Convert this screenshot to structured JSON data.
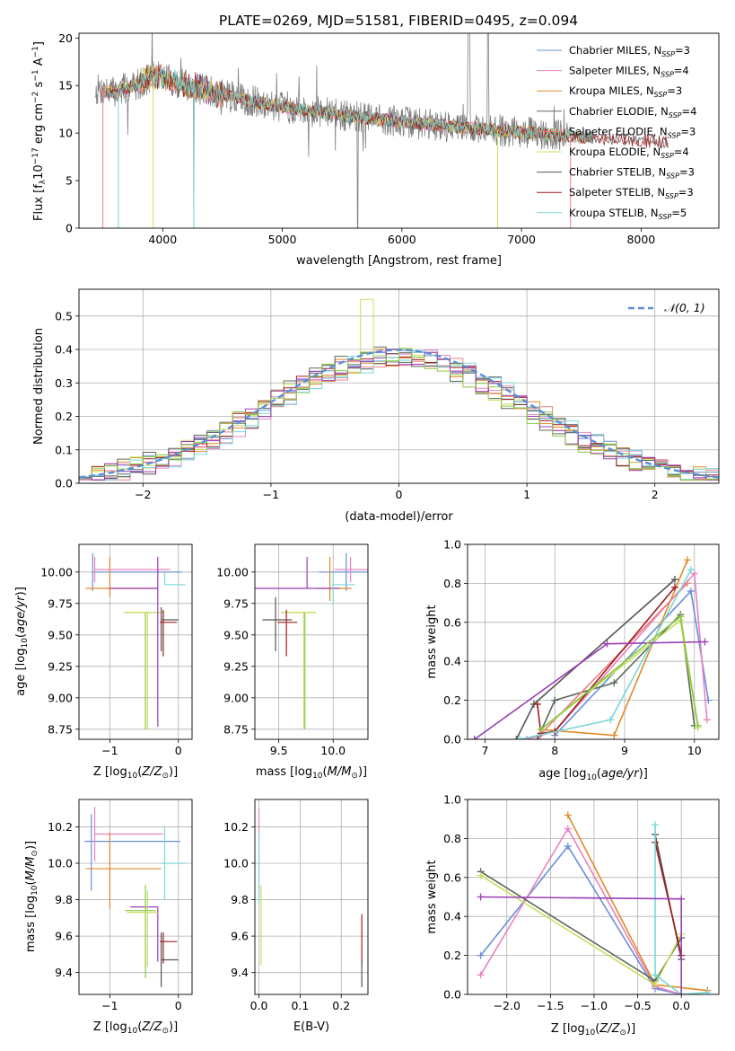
{
  "title": "PLATE=0269, MJD=51581, FIBERID=0495, z=0.094",
  "colors": {
    "chabrier_miles": "#6a8fd8",
    "salpeter_miles": "#e883c0",
    "kroupa_miles": "#e08a2a",
    "chabrier_elodie": "#5a6a5a",
    "salpeter_elodie": "#f08080",
    "kroupa_elodie": "#c8e060",
    "chabrier_stelib": "#555555",
    "salpeter_stelib": "#a01c1c",
    "kroupa_stelib": "#7ad8d8",
    "purple": "#9a3fb5",
    "green": "#8ac940",
    "observed": "#808080",
    "normal": "#5b8fd8"
  },
  "chart_data": [
    {
      "id": "spectrum",
      "type": "line",
      "xlabel": "wavelength [Angstrom, rest frame]",
      "ylabel": "Flux [f_λ 10^-17 erg cm^-2 s^-1 A^-1]",
      "xlim": [
        3300,
        8650
      ],
      "ylim": [
        0,
        20.5
      ],
      "xticks": [
        4000,
        5000,
        6000,
        7000,
        8000
      ],
      "yticks": [
        0,
        5,
        10,
        15,
        20
      ],
      "grid": false,
      "legend_position": "top-right",
      "legend": [
        {
          "name": "Chabrier MILES",
          "nssp": "3",
          "color": "#6a8fd8"
        },
        {
          "name": "Salpeter MILES",
          "nssp": "4",
          "color": "#e883c0"
        },
        {
          "name": "Kroupa MILES",
          "nssp": "3",
          "color": "#e08a2a"
        },
        {
          "name": "Chabrier ELODIE",
          "nssp": "4",
          "color": "#5a6a5a"
        },
        {
          "name": "Salpeter ELODIE",
          "nssp": "3",
          "color": "#f08080"
        },
        {
          "name": "Kroupa ELODIE",
          "nssp": "4",
          "color": "#c8e060"
        },
        {
          "name": "Chabrier STELIB",
          "nssp": "3",
          "color": "#555555"
        },
        {
          "name": "Salpeter STELIB",
          "nssp": "3",
          "color": "#a01c1c"
        },
        {
          "name": "Kroupa STELIB",
          "nssp": "5",
          "color": "#7ad8d8"
        }
      ],
      "continuum": [
        [
          3430,
          14.6
        ],
        [
          3600,
          14.3
        ],
        [
          3800,
          15.2
        ],
        [
          3950,
          16.2
        ],
        [
          4100,
          15.4
        ],
        [
          4400,
          14.3
        ],
        [
          4800,
          13.2
        ],
        [
          5200,
          12.4
        ],
        [
          5600,
          11.7
        ],
        [
          6000,
          11.2
        ],
        [
          6500,
          10.6
        ],
        [
          7000,
          10.1
        ],
        [
          7500,
          9.6
        ],
        [
          8000,
          9.2
        ],
        [
          8230,
          9.0
        ]
      ]
    },
    {
      "id": "residuals",
      "type": "line",
      "xlabel": "(data-model)/error",
      "ylabel": "Normed distribution",
      "xlim": [
        -2.5,
        2.5
      ],
      "ylim": [
        0,
        0.58
      ],
      "xticks": [
        -2,
        -1,
        0,
        1,
        2
      ],
      "yticks": [
        0.0,
        0.1,
        0.2,
        0.3,
        0.4,
        0.5
      ],
      "grid": true,
      "legend_position": "top-right",
      "legend": [
        {
          "name": "𝒩(0, 1)",
          "style": "dashed"
        }
      ],
      "bin_width": 0.1
    },
    {
      "id": "age_vs_Z",
      "type": "scatter",
      "xlabel": "Z [log10(Z/Z⊙)]",
      "ylabel": "age  [log10(age/yr)]",
      "xlim": [
        -1.45,
        0.2
      ],
      "ylim": [
        8.67,
        10.22
      ],
      "xticks": [
        -1,
        0
      ],
      "yticks": [
        8.75,
        9.0,
        9.25,
        9.5,
        9.75,
        10.0
      ],
      "grid": true,
      "points": [
        {
          "x": -1.25,
          "xerr": [
            0.0,
            1.3
          ],
          "y": 10.0,
          "yerr": [
            0.15,
            0.15
          ],
          "color": "#6a8fd8"
        },
        {
          "x": -1.22,
          "xerr": [
            0.0,
            1.1
          ],
          "y": 10.02,
          "yerr": [
            0.1,
            0.1
          ],
          "color": "#e883c0"
        },
        {
          "x": -1.0,
          "xerr": [
            0.35,
            0.7
          ],
          "y": 9.87,
          "yerr": [
            0.07,
            0.25
          ],
          "color": "#e08a2a"
        },
        {
          "x": -0.48,
          "xerr": [
            0.3,
            0.2
          ],
          "y": 9.68,
          "yerr": [
            0.93,
            0.0
          ],
          "color": "#8ac940"
        },
        {
          "x": -0.45,
          "xerr": [
            0.35,
            0.25
          ],
          "y": 9.68,
          "yerr": [
            0.93,
            0.0
          ],
          "color": "#c8e060"
        },
        {
          "x": -0.3,
          "xerr": [
            0.7,
            0.0
          ],
          "y": 9.87,
          "yerr": [
            1.1,
            0.25
          ],
          "color": "#9a3fb5"
        },
        {
          "x": -0.2,
          "xerr": [
            0.0,
            0.3
          ],
          "y": 9.9,
          "yerr": [
            0.0,
            0.1
          ],
          "color": "#7ad8d8"
        },
        {
          "x": -0.25,
          "xerr": [
            0.0,
            0.25
          ],
          "y": 9.62,
          "yerr": [
            0.25,
            0.1
          ],
          "color": "#555555"
        },
        {
          "x": -0.22,
          "xerr": [
            0.05,
            0.2
          ],
          "y": 9.6,
          "yerr": [
            0.27,
            0.1
          ],
          "color": "#a01c1c"
        }
      ]
    },
    {
      "id": "age_vs_mass",
      "type": "scatter",
      "xlabel": "mass [log10(M/M⊙)]",
      "ylabel": "",
      "xlim": [
        9.28,
        10.32
      ],
      "ylim": [
        8.67,
        10.22
      ],
      "xticks": [
        9.5,
        10.0
      ],
      "yticks": [
        8.75,
        9.0,
        9.25,
        9.5,
        9.75,
        10.0
      ],
      "grid": true,
      "points": [
        {
          "x": 10.12,
          "xerr": [
            0.25,
            0.2
          ],
          "y": 10.0,
          "yerr": [
            0.15,
            0.15
          ],
          "color": "#6a8fd8"
        },
        {
          "x": 10.16,
          "xerr": [
            0.15,
            0.2
          ],
          "y": 10.02,
          "yerr": [
            0.1,
            0.1
          ],
          "color": "#e883c0"
        },
        {
          "x": 9.97,
          "xerr": [
            0.12,
            0.2
          ],
          "y": 9.87,
          "yerr": [
            0.1,
            0.25
          ],
          "color": "#e08a2a"
        },
        {
          "x": 9.76,
          "xerr": [
            0.5,
            0.3
          ],
          "y": 9.87,
          "yerr": [
            0.0,
            0.25
          ],
          "color": "#9a3fb5"
        },
        {
          "x": 10.0,
          "xerr": [
            0.0,
            0.2
          ],
          "y": 9.9,
          "yerr": [
            0.15,
            0.1
          ],
          "color": "#7ad8d8"
        },
        {
          "x": 9.74,
          "xerr": [
            0.22,
            0.1
          ],
          "y": 9.68,
          "yerr": [
            0.93,
            0.0
          ],
          "color": "#8ac940"
        },
        {
          "x": 9.73,
          "xerr": [
            0.2,
            0.1
          ],
          "y": 9.68,
          "yerr": [
            0.93,
            0.0
          ],
          "color": "#c8e060"
        },
        {
          "x": 9.47,
          "xerr": [
            0.12,
            0.15
          ],
          "y": 9.62,
          "yerr": [
            0.25,
            0.18
          ],
          "color": "#555555"
        },
        {
          "x": 9.57,
          "xerr": [
            0.08,
            0.1
          ],
          "y": 9.6,
          "yerr": [
            0.27,
            0.1
          ],
          "color": "#a01c1c"
        }
      ]
    },
    {
      "id": "massweight_vs_age",
      "type": "line",
      "xlabel": "age  [log10(age/yr)]",
      "ylabel": "mass weight",
      "xlim": [
        6.75,
        10.35
      ],
      "ylim": [
        0,
        1.0
      ],
      "xticks": [
        7,
        8,
        9,
        10
      ],
      "yticks": [
        0.0,
        0.2,
        0.4,
        0.6,
        0.8,
        1.0
      ],
      "grid": true,
      "series": [
        {
          "name": "Chabrier MILES",
          "color": "#6a8fd8",
          "points": [
            [
              8.0,
              0.02
            ],
            [
              9.95,
              0.76
            ],
            [
              10.2,
              0.2
            ]
          ]
        },
        {
          "name": "Salpeter MILES",
          "color": "#e883c0",
          "points": [
            [
              7.6,
              0.0
            ],
            [
              8.0,
              0.04
            ],
            [
              10.0,
              0.85
            ],
            [
              10.18,
              0.1
            ]
          ]
        },
        {
          "name": "Kroupa MILES",
          "color": "#e08a2a",
          "points": [
            [
              7.8,
              0.05
            ],
            [
              8.85,
              0.02
            ],
            [
              9.9,
              0.92
            ]
          ]
        },
        {
          "name": "Chabrier ELODIE",
          "color": "#5a6a5a",
          "points": [
            [
              7.75,
              0.0
            ],
            [
              8.0,
              0.2
            ],
            [
              8.85,
              0.29
            ],
            [
              9.8,
              0.64
            ],
            [
              10.0,
              0.07
            ]
          ]
        },
        {
          "name": "Salpeter ELODIE",
          "color": "#f08080",
          "points": [
            [
              7.78,
              0.02
            ],
            [
              9.9,
              0.8
            ]
          ]
        },
        {
          "name": "Kroupa ELODIE",
          "color": "#c8e060",
          "points": [
            [
              7.8,
              0.05
            ],
            [
              9.8,
              0.61
            ],
            [
              10.05,
              0.06
            ]
          ]
        },
        {
          "name": "Chabrier STELIB",
          "color": "#555555",
          "points": [
            [
              7.45,
              0.0
            ],
            [
              7.7,
              0.18
            ],
            [
              9.72,
              0.82
            ]
          ]
        },
        {
          "name": "Salpeter STELIB",
          "color": "#a01c1c",
          "points": [
            [
              7.75,
              0.18
            ],
            [
              7.8,
              0.03
            ],
            [
              8.0,
              0.04
            ],
            [
              9.72,
              0.78
            ]
          ]
        },
        {
          "name": "Kroupa STELIB",
          "color": "#7ad8d8",
          "points": [
            [
              7.5,
              0.0
            ],
            [
              8.8,
              0.1
            ],
            [
              9.95,
              0.87
            ]
          ]
        },
        {
          "name": "",
          "color": "#9a3fb5",
          "points": [
            [
              6.85,
              0.0
            ],
            [
              8.75,
              0.49
            ],
            [
              10.15,
              0.5
            ]
          ]
        },
        {
          "name": "",
          "color": "#8ac940",
          "points": [
            [
              7.8,
              0.05
            ],
            [
              9.8,
              0.63
            ],
            [
              10.05,
              0.07
            ]
          ]
        }
      ]
    },
    {
      "id": "mass_vs_Z",
      "type": "scatter",
      "xlabel": "Z [log10(Z/Z⊙)]",
      "ylabel": "mass [log10(M/M⊙)]",
      "xlim": [
        -1.45,
        0.2
      ],
      "ylim": [
        9.28,
        10.35
      ],
      "xticks": [
        -1,
        0
      ],
      "yticks": [
        9.4,
        9.6,
        9.8,
        10.0,
        10.2
      ],
      "grid": true,
      "points": [
        {
          "x": -1.27,
          "xerr": [
            0.1,
            1.3
          ],
          "y": 10.12,
          "yerr": [
            0.27,
            0.15
          ],
          "color": "#6a8fd8"
        },
        {
          "x": -1.22,
          "xerr": [
            0.0,
            1.0
          ],
          "y": 10.16,
          "yerr": [
            0.15,
            0.15
          ],
          "color": "#e883c0"
        },
        {
          "x": -1.0,
          "xerr": [
            0.35,
            0.75
          ],
          "y": 9.97,
          "yerr": [
            0.22,
            0.2
          ],
          "color": "#e08a2a"
        },
        {
          "x": -0.2,
          "xerr": [
            0.05,
            0.3
          ],
          "y": 10.0,
          "yerr": [
            0.2,
            0.2
          ],
          "color": "#7ad8d8"
        },
        {
          "x": -0.3,
          "xerr": [
            0.4,
            0.0
          ],
          "y": 9.76,
          "yerr": [
            0.3,
            0.0
          ],
          "color": "#9a3fb5"
        },
        {
          "x": -0.48,
          "xerr": [
            0.3,
            0.15
          ],
          "y": 9.74,
          "yerr": [
            0.37,
            0.14
          ],
          "color": "#8ac940"
        },
        {
          "x": -0.45,
          "xerr": [
            0.3,
            0.15
          ],
          "y": 9.73,
          "yerr": [
            0.3,
            0.12
          ],
          "color": "#c8e060"
        },
        {
          "x": -0.25,
          "xerr": [
            0.0,
            0.25
          ],
          "y": 9.47,
          "yerr": [
            0.15,
            0.15
          ],
          "color": "#555555"
        },
        {
          "x": -0.22,
          "xerr": [
            0.05,
            0.2
          ],
          "y": 9.57,
          "yerr": [
            0.12,
            0.05
          ],
          "color": "#a01c1c"
        }
      ]
    },
    {
      "id": "mass_vs_ebv",
      "type": "scatter",
      "xlabel": "E(B-V)",
      "ylabel": "",
      "xlim": [
        -0.01,
        0.265
      ],
      "ylim": [
        9.28,
        10.35
      ],
      "xticks": [
        0.0,
        0.1,
        0.2
      ],
      "yticks": [
        9.4,
        9.6,
        9.8,
        10.0,
        10.2
      ],
      "grid": true,
      "points": [
        {
          "x": 0.0,
          "y": 10.12,
          "yerr": [
            0.3,
            0.18
          ],
          "color": "#e883c0"
        },
        {
          "x": 0.0,
          "y": 9.97,
          "yerr": [
            0.2,
            0.2
          ],
          "color": "#7ad8d8"
        },
        {
          "x": 0.005,
          "y": 9.74,
          "yerr": [
            0.3,
            0.14
          ],
          "color": "#c8e060"
        },
        {
          "x": 0.25,
          "y": 9.57,
          "yerr": [
            0.12,
            0.15
          ],
          "color": "#a01c1c"
        },
        {
          "x": 0.25,
          "y": 9.47,
          "yerr": [
            0.15,
            0.0
          ],
          "color": "#555555"
        }
      ]
    },
    {
      "id": "massweight_vs_Z",
      "type": "line",
      "xlabel": "Z [log10(Z/Z⊙)]",
      "ylabel": "mass weight",
      "xlim": [
        -2.45,
        0.43
      ],
      "ylim": [
        0,
        1.0
      ],
      "xticks": [
        -2.0,
        -1.5,
        -1.0,
        -0.5,
        0.0
      ],
      "yticks": [
        0.0,
        0.2,
        0.4,
        0.6,
        0.8,
        1.0
      ],
      "grid": true,
      "series": [
        {
          "name": "Chabrier MILES",
          "color": "#6a8fd8",
          "points": [
            [
              -2.3,
              0.2
            ],
            [
              -1.3,
              0.76
            ],
            [
              -0.3,
              0.03
            ],
            [
              0.0,
              0.0
            ]
          ]
        },
        {
          "name": "Salpeter MILES",
          "color": "#e883c0",
          "points": [
            [
              -2.3,
              0.1
            ],
            [
              -1.3,
              0.85
            ],
            [
              -0.3,
              0.04
            ],
            [
              0.0,
              0.0
            ]
          ]
        },
        {
          "name": "Kroupa MILES",
          "color": "#e08a2a",
          "points": [
            [
              -1.3,
              0.92
            ],
            [
              -0.3,
              0.05
            ],
            [
              0.3,
              0.02
            ]
          ]
        },
        {
          "name": "Chabrier ELODIE",
          "color": "#5a6a5a",
          "points": [
            [
              -2.3,
              0.63
            ],
            [
              -0.3,
              0.07
            ],
            [
              0.0,
              0.29
            ]
          ]
        },
        {
          "name": "Kroupa ELODIE",
          "color": "#c8e060",
          "points": [
            [
              -2.3,
              0.61
            ],
            [
              -0.3,
              0.05
            ],
            [
              0.0,
              0.31
            ]
          ]
        },
        {
          "name": "Chabrier STELIB",
          "color": "#555555",
          "points": [
            [
              -0.3,
              0.82
            ],
            [
              0.0,
              0.18
            ]
          ]
        },
        {
          "name": "Salpeter STELIB",
          "color": "#a01c1c",
          "points": [
            [
              -0.3,
              0.78
            ],
            [
              0.0,
              0.2
            ]
          ]
        },
        {
          "name": "Kroupa STELIB",
          "color": "#7ad8d8",
          "points": [
            [
              -0.3,
              0.87
            ],
            [
              -0.3,
              0.1
            ],
            [
              0.0,
              0.0
            ],
            [
              0.3,
              0.01
            ]
          ]
        },
        {
          "name": "",
          "color": "#9a3fb5",
          "points": [
            [
              -2.3,
              0.5
            ],
            [
              0.0,
              0.49
            ],
            [
              0.0,
              0.0
            ]
          ]
        }
      ]
    }
  ]
}
